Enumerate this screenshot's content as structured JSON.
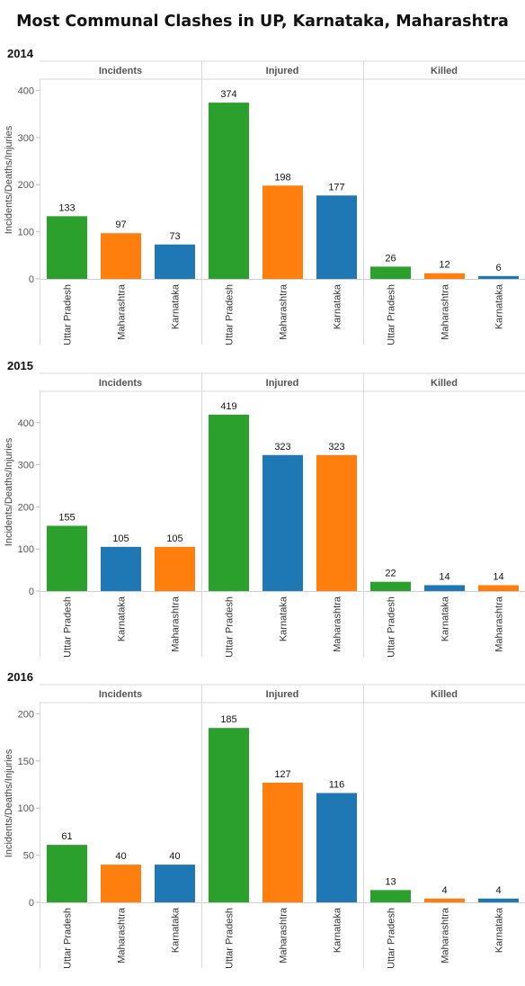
{
  "title": "Most Communal Clashes in UP, Karnataka, Maharashtra",
  "chart_data": [
    {
      "type": "bar",
      "year": "2014",
      "ylabel": "Incidents/Deaths/Injuries",
      "ylim": [
        0,
        420
      ],
      "yticks": [
        0,
        100,
        200,
        300,
        400
      ],
      "panels": [
        {
          "label": "Incidents",
          "categories": [
            "Uttar Pradesh",
            "Maharashtra",
            "Karnataka"
          ],
          "values": [
            133,
            97,
            73
          ]
        },
        {
          "label": "Injured",
          "categories": [
            "Uttar Pradesh",
            "Maharashtra",
            "Karnataka"
          ],
          "values": [
            374,
            198,
            177
          ]
        },
        {
          "label": "Killed",
          "categories": [
            "Uttar Pradesh",
            "Maharashtra",
            "Karnataka"
          ],
          "values": [
            26,
            12,
            6
          ]
        }
      ]
    },
    {
      "type": "bar",
      "year": "2015",
      "ylabel": "Incidents/Deaths/Injuries",
      "ylim": [
        0,
        470
      ],
      "yticks": [
        0,
        100,
        200,
        300,
        400
      ],
      "panels": [
        {
          "label": "Incidents",
          "categories": [
            "Uttar Pradesh",
            "Karnataka",
            "Maharashtra"
          ],
          "values": [
            155,
            105,
            105
          ]
        },
        {
          "label": "Injured",
          "categories": [
            "Uttar Pradesh",
            "Karnataka",
            "Maharashtra"
          ],
          "values": [
            419,
            323,
            323
          ]
        },
        {
          "label": "Killed",
          "categories": [
            "Uttar Pradesh",
            "Karnataka",
            "Maharashtra"
          ],
          "values": [
            22,
            14,
            14
          ]
        }
      ]
    },
    {
      "type": "bar",
      "year": "2016",
      "ylabel": "Incidents/Deaths/Injuries",
      "ylim": [
        0,
        210
      ],
      "yticks": [
        0,
        50,
        100,
        150,
        200
      ],
      "panels": [
        {
          "label": "Incidents",
          "categories": [
            "Uttar Pradesh",
            "Maharashtra",
            "Karnataka"
          ],
          "values": [
            61,
            40,
            40
          ]
        },
        {
          "label": "Injured",
          "categories": [
            "Uttar Pradesh",
            "Maharashtra",
            "Karnataka"
          ],
          "values": [
            185,
            127,
            116
          ]
        },
        {
          "label": "Killed",
          "categories": [
            "Uttar Pradesh",
            "Maharashtra",
            "Karnataka"
          ],
          "values": [
            13,
            4,
            4
          ]
        }
      ]
    }
  ],
  "colors": {
    "Uttar Pradesh": "#2ca02c",
    "Maharashtra": "#ff7f0e",
    "Karnataka": "#1f77b4"
  }
}
